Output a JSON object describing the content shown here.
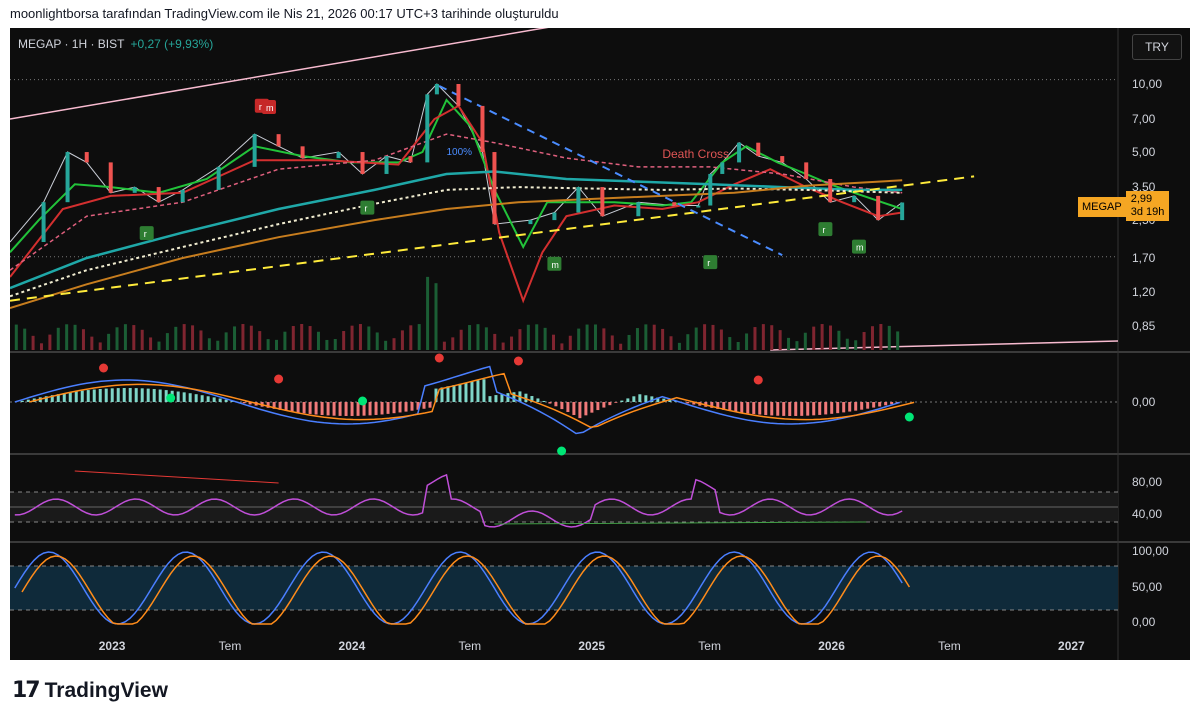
{
  "header": {
    "text": "moonlightborsa tarafından TradingView.com ile Nis 21, 2026 00:17 UTC+3 tarihinde oluşturuldu"
  },
  "legend": {
    "symbol_line": "MEGAP · 1H · BIST",
    "change": "+0,27 (+9,93%)"
  },
  "currency_button": "TRY",
  "price_tag": {
    "symbol": "MEGAP",
    "price": "2,99",
    "countdown": "3d 19h"
  },
  "annotations": {
    "death_cross": "Death Cross",
    "pct_label": "100%"
  },
  "footer": {
    "brand": "TradingView"
  },
  "colors": {
    "background": "#0d0d0d",
    "up": "#26a69a",
    "down": "#ef5350",
    "price_tag": "#f5a623"
  },
  "chart_data": {
    "type": "line",
    "x_ticks": [
      "2023",
      "Tem",
      "2024",
      "Tem",
      "2025",
      "Tem",
      "2026",
      "Tem",
      "2027"
    ],
    "panes": [
      {
        "name": "price",
        "scale": "log",
        "y_ticks": [
          "10,00",
          "7,00",
          "5,00",
          "3,50",
          "2,50",
          "1,70",
          "1,20",
          "0,85"
        ],
        "series": [
          {
            "kind": "close",
            "points": [
              [
                2022.58,
                2.0
              ],
              [
                2022.72,
                3.0
              ],
              [
                2022.82,
                5.0
              ],
              [
                2022.9,
                4.5
              ],
              [
                2023.0,
                3.3
              ],
              [
                2023.1,
                3.5
              ],
              [
                2023.2,
                3.0
              ],
              [
                2023.3,
                3.4
              ],
              [
                2023.45,
                4.3
              ],
              [
                2023.6,
                6.0
              ],
              [
                2023.7,
                5.3
              ],
              [
                2023.8,
                4.7
              ],
              [
                2023.95,
                5.0
              ],
              [
                2024.05,
                4.0
              ],
              [
                2024.15,
                4.8
              ],
              [
                2024.25,
                4.5
              ],
              [
                2024.32,
                9.0
              ],
              [
                2024.36,
                10.0
              ],
              [
                2024.45,
                8.0
              ],
              [
                2024.55,
                5.0
              ],
              [
                2024.6,
                2.4
              ],
              [
                2024.75,
                2.5
              ],
              [
                2024.85,
                2.7
              ],
              [
                2024.95,
                3.5
              ],
              [
                2025.05,
                2.6
              ],
              [
                2025.2,
                3.0
              ],
              [
                2025.35,
                2.9
              ],
              [
                2025.45,
                2.9
              ],
              [
                2025.5,
                4.0
              ],
              [
                2025.55,
                4.5
              ],
              [
                2025.62,
                5.5
              ],
              [
                2025.7,
                4.8
              ],
              [
                2025.8,
                4.5
              ],
              [
                2025.9,
                3.8
              ],
              [
                2026.0,
                3.0
              ],
              [
                2026.1,
                3.2
              ],
              [
                2026.2,
                2.5
              ],
              [
                2026.3,
                2.99
              ]
            ]
          },
          {
            "kind": "ma_fast",
            "color": "#22c33a",
            "points": [
              [
                2022.58,
                1.8
              ],
              [
                2022.7,
                2.5
              ],
              [
                2022.85,
                3.6
              ],
              [
                2023.0,
                3.5
              ],
              [
                2023.2,
                3.3
              ],
              [
                2023.4,
                3.8
              ],
              [
                2023.6,
                5.3
              ],
              [
                2023.8,
                4.8
              ],
              [
                2024.0,
                4.5
              ],
              [
                2024.2,
                4.5
              ],
              [
                2024.3,
                5.0
              ],
              [
                2024.4,
                8.5
              ],
              [
                2024.5,
                6.5
              ],
              [
                2024.6,
                3.4
              ],
              [
                2024.72,
                1.9
              ],
              [
                2024.82,
                3.0
              ],
              [
                2024.95,
                3.0
              ],
              [
                2025.1,
                3.0
              ],
              [
                2025.3,
                2.9
              ],
              [
                2025.42,
                3.0
              ],
              [
                2025.55,
                4.5
              ],
              [
                2025.65,
                5.3
              ],
              [
                2025.78,
                4.5
              ],
              [
                2025.9,
                4.0
              ],
              [
                2026.0,
                3.6
              ],
              [
                2026.1,
                3.3
              ],
              [
                2026.3,
                2.8
              ]
            ]
          },
          {
            "kind": "ma_red",
            "color": "#d32f2f",
            "points": [
              [
                2022.58,
                1.4
              ],
              [
                2022.8,
                2.8
              ],
              [
                2023.0,
                3.2
              ],
              [
                2023.3,
                3.3
              ],
              [
                2023.6,
                4.6
              ],
              [
                2023.9,
                4.6
              ],
              [
                2024.2,
                4.4
              ],
              [
                2024.35,
                7.0
              ],
              [
                2024.45,
                8.0
              ],
              [
                2024.55,
                5.5
              ],
              [
                2024.62,
                2.2
              ],
              [
                2024.72,
                1.1
              ],
              [
                2024.8,
                1.8
              ],
              [
                2024.9,
                2.6
              ],
              [
                2025.1,
                2.9
              ],
              [
                2025.3,
                2.8
              ],
              [
                2025.45,
                3.0
              ],
              [
                2025.6,
                3.6
              ],
              [
                2025.75,
                4.2
              ],
              [
                2025.9,
                3.5
              ],
              [
                2026.05,
                3.0
              ],
              [
                2026.2,
                2.6
              ],
              [
                2026.3,
                2.7
              ]
            ]
          },
          {
            "kind": "ma_pink_dashed",
            "color": "#e0607e",
            "points": [
              [
                2022.58,
                1.5
              ],
              [
                2022.9,
                2.6
              ],
              [
                2023.3,
                3.0
              ],
              [
                2023.7,
                4.2
              ],
              [
                2024.1,
                4.6
              ],
              [
                2024.4,
                6.0
              ],
              [
                2024.6,
                5.5
              ],
              [
                2024.9,
                4.7
              ],
              [
                2025.2,
                4.3
              ],
              [
                2025.5,
                4.3
              ],
              [
                2025.8,
                4.0
              ],
              [
                2026.1,
                3.5
              ],
              [
                2026.3,
                3.3
              ]
            ]
          },
          {
            "kind": "ma_teal",
            "color": "#1fa8a8",
            "points": [
              [
                2022.58,
                1.25
              ],
              [
                2022.9,
                1.7
              ],
              [
                2023.3,
                2.2
              ],
              [
                2023.7,
                2.8
              ],
              [
                2024.1,
                3.4
              ],
              [
                2024.4,
                4.0
              ],
              [
                2024.6,
                4.1
              ],
              [
                2024.9,
                3.8
              ],
              [
                2025.2,
                3.7
              ],
              [
                2025.5,
                3.6
              ],
              [
                2025.8,
                3.5
              ],
              [
                2026.1,
                3.4
              ],
              [
                2026.3,
                3.4
              ]
            ]
          },
          {
            "kind": "ma_white_dashed",
            "color": "#f0ecd0",
            "points": [
              [
                2022.58,
                1.15
              ],
              [
                2022.9,
                1.5
              ],
              [
                2023.3,
                1.9
              ],
              [
                2023.7,
                2.4
              ],
              [
                2024.1,
                2.95
              ],
              [
                2024.4,
                3.4
              ],
              [
                2024.7,
                3.5
              ],
              [
                2025.0,
                3.45
              ],
              [
                2025.3,
                3.4
              ],
              [
                2025.6,
                3.45
              ],
              [
                2025.9,
                3.4
              ],
              [
                2026.3,
                3.3
              ]
            ]
          },
          {
            "kind": "ma_orange",
            "color": "#c77d1e",
            "points": [
              [
                2022.58,
                1.02
              ],
              [
                2022.9,
                1.3
              ],
              [
                2023.3,
                1.7
              ],
              [
                2023.7,
                2.1
              ],
              [
                2024.1,
                2.5
              ],
              [
                2024.4,
                2.8
              ],
              [
                2024.7,
                3.0
              ],
              [
                2025.0,
                3.1
              ],
              [
                2025.3,
                3.2
              ],
              [
                2025.6,
                3.3
              ],
              [
                2025.9,
                3.55
              ],
              [
                2026.3,
                3.75
              ]
            ]
          },
          {
            "kind": "trend_yellow_dashed",
            "color": "#ffeb3b",
            "points": [
              [
                2022.58,
                1.1
              ],
              [
                2026.6,
                3.9
              ]
            ]
          },
          {
            "kind": "trend_blue_dashed",
            "color": "#4a8cff",
            "points": [
              [
                2024.37,
                9.8
              ],
              [
                2025.8,
                1.75
              ]
            ]
          },
          {
            "kind": "channel_pink",
            "color": "#f8bbd0",
            "points": [
              [
                2022.58,
                7.0
              ],
              [
                2025.1,
                20.0
              ]
            ]
          }
        ]
      },
      {
        "name": "macd",
        "y_ticks": [
          "0,00"
        ]
      },
      {
        "name": "rsi",
        "y_ticks": [
          "80,00",
          "40,00"
        ]
      },
      {
        "name": "stochastic",
        "y_ticks": [
          "100,00",
          "50,00",
          "0,00"
        ]
      }
    ]
  }
}
